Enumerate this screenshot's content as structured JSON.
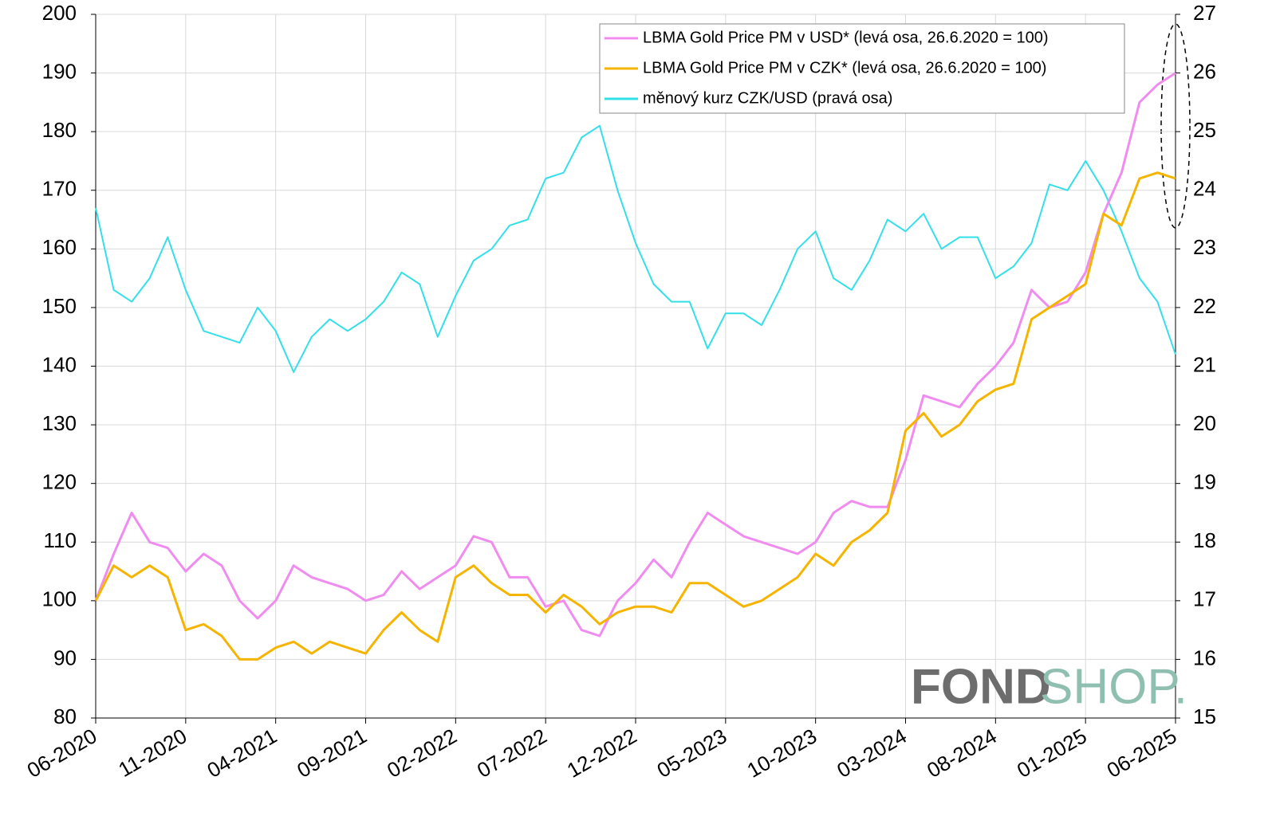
{
  "chart_data": {
    "type": "line",
    "categories": [
      "06-2020",
      null,
      null,
      null,
      null,
      "11-2020",
      null,
      null,
      null,
      null,
      "04-2021",
      null,
      null,
      null,
      null,
      "09-2021",
      null,
      null,
      null,
      null,
      "02-2022",
      null,
      null,
      null,
      null,
      "07-2022",
      null,
      null,
      null,
      null,
      "12-2022",
      null,
      null,
      null,
      null,
      "05-2023",
      null,
      null,
      null,
      null,
      "10-2023",
      null,
      null,
      null,
      null,
      "03-2024",
      null,
      null,
      null,
      null,
      "08-2024",
      null,
      null,
      null,
      null,
      "01-2025",
      null,
      null,
      null,
      null,
      "06-2025"
    ],
    "series": [
      {
        "name": "LBMA Gold Price PM v USD* (levá osa, 26.6.2020 = 100)",
        "color": "#f08cf0",
        "axis": "y",
        "values": [
          100,
          108,
          115,
          110,
          109,
          105,
          108,
          106,
          100,
          97,
          100,
          106,
          104,
          103,
          102,
          100,
          101,
          105,
          102,
          104,
          106,
          111,
          110,
          104,
          104,
          99,
          100,
          95,
          94,
          100,
          103,
          107,
          104,
          110,
          115,
          113,
          111,
          110,
          109,
          108,
          110,
          115,
          117,
          116,
          116,
          124,
          135,
          134,
          133,
          137,
          140,
          144,
          153,
          150,
          151,
          156,
          166,
          173,
          185,
          188,
          190
        ]
      },
      {
        "name": "LBMA Gold Price PM v CZK* (levá osa, 26.6.2020 = 100)",
        "color": "#f5b400",
        "axis": "y",
        "values": [
          100,
          106,
          104,
          106,
          104,
          95,
          96,
          94,
          90,
          90,
          92,
          93,
          91,
          93,
          92,
          91,
          95,
          98,
          95,
          93,
          104,
          106,
          103,
          101,
          101,
          98,
          101,
          99,
          96,
          98,
          99,
          99,
          98,
          103,
          103,
          101,
          99,
          100,
          102,
          104,
          108,
          106,
          110,
          112,
          115,
          129,
          132,
          128,
          130,
          134,
          136,
          137,
          148,
          150,
          152,
          154,
          166,
          164,
          172,
          173,
          172
        ]
      },
      {
        "name": "měnový kurz CZK/USD (pravá osa)",
        "color": "#33e0e8",
        "axis": "y2",
        "values": [
          23.7,
          22.3,
          22.1,
          22.5,
          23.2,
          22.3,
          21.6,
          21.5,
          21.4,
          22.0,
          21.6,
          20.9,
          21.5,
          21.8,
          21.6,
          21.8,
          22.1,
          22.6,
          22.4,
          21.5,
          22.2,
          22.8,
          23.0,
          23.4,
          23.5,
          24.2,
          24.3,
          24.9,
          25.1,
          24.0,
          23.1,
          22.4,
          22.1,
          22.1,
          21.3,
          21.9,
          21.9,
          21.7,
          22.3,
          23.0,
          23.3,
          22.5,
          22.3,
          22.8,
          23.5,
          23.3,
          23.6,
          23.0,
          23.2,
          23.2,
          22.5,
          22.7,
          23.1,
          24.1,
          24.0,
          24.5,
          24.0,
          23.3,
          22.5,
          22.1,
          21.2
        ]
      }
    ],
    "ylim": [
      80,
      200
    ],
    "yticks": [
      80,
      90,
      100,
      110,
      120,
      130,
      140,
      150,
      160,
      170,
      180,
      190,
      200
    ],
    "y2lim": [
      15,
      27
    ],
    "y2ticks": [
      15,
      16,
      17,
      18,
      19,
      20,
      21,
      22,
      23,
      24,
      25,
      26,
      27
    ],
    "grid": true,
    "legend": "top-right",
    "logo": [
      "FOND",
      "SHOP."
    ]
  }
}
